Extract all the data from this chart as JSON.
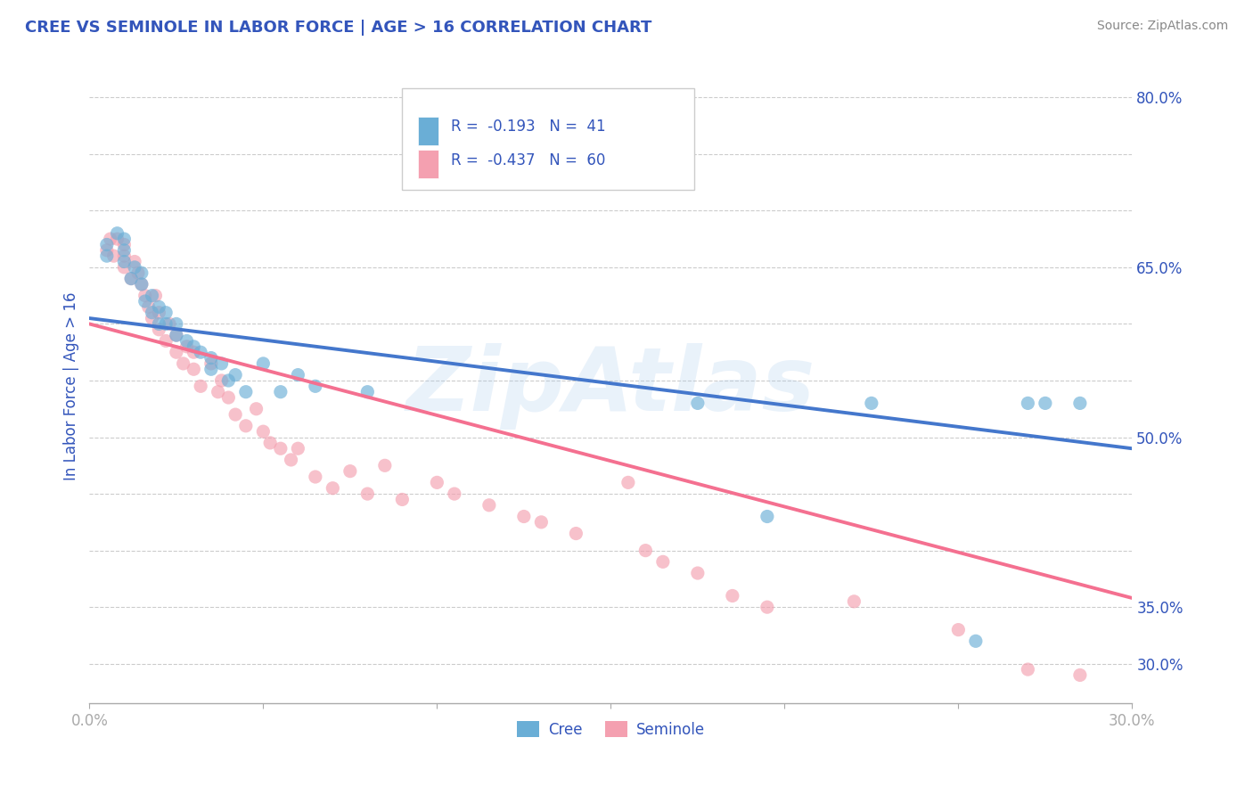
{
  "title": "CREE VS SEMINOLE IN LABOR FORCE | AGE > 16 CORRELATION CHART",
  "source_text": "Source: ZipAtlas.com",
  "ylabel": "In Labor Force | Age > 16",
  "xlim": [
    0.0,
    0.3
  ],
  "ylim": [
    0.265,
    0.825
  ],
  "cree_color": "#6aaed6",
  "seminole_color": "#f4a0b0",
  "cree_line_color": "#4477cc",
  "seminole_line_color": "#f47090",
  "legend_text_color": "#3355bb",
  "title_color": "#3355bb",
  "background_color": "#ffffff",
  "watermark": "ZipAtlas",
  "cree_R": -0.193,
  "cree_N": 41,
  "seminole_R": -0.437,
  "seminole_N": 60,
  "cree_line_x0": 0.0,
  "cree_line_y0": 0.605,
  "cree_line_x1": 0.3,
  "cree_line_y1": 0.49,
  "seminole_line_x0": 0.0,
  "seminole_line_y0": 0.6,
  "seminole_line_x1": 0.3,
  "seminole_line_y1": 0.358,
  "cree_x": [
    0.005,
    0.005,
    0.008,
    0.01,
    0.01,
    0.01,
    0.012,
    0.013,
    0.015,
    0.015,
    0.016,
    0.018,
    0.018,
    0.02,
    0.02,
    0.022,
    0.022,
    0.025,
    0.025,
    0.028,
    0.03,
    0.032,
    0.035,
    0.035,
    0.038,
    0.04,
    0.042,
    0.045,
    0.05,
    0.055,
    0.06,
    0.065,
    0.08,
    0.155,
    0.175,
    0.195,
    0.225,
    0.255,
    0.27,
    0.275,
    0.285
  ],
  "cree_y": [
    0.66,
    0.67,
    0.68,
    0.655,
    0.665,
    0.675,
    0.64,
    0.65,
    0.635,
    0.645,
    0.62,
    0.61,
    0.625,
    0.6,
    0.615,
    0.6,
    0.61,
    0.59,
    0.6,
    0.585,
    0.58,
    0.575,
    0.57,
    0.56,
    0.565,
    0.55,
    0.555,
    0.54,
    0.565,
    0.54,
    0.555,
    0.545,
    0.54,
    0.74,
    0.53,
    0.43,
    0.53,
    0.32,
    0.53,
    0.53,
    0.53
  ],
  "seminole_x": [
    0.005,
    0.006,
    0.007,
    0.008,
    0.01,
    0.01,
    0.01,
    0.012,
    0.013,
    0.014,
    0.015,
    0.016,
    0.017,
    0.018,
    0.019,
    0.02,
    0.02,
    0.022,
    0.023,
    0.025,
    0.025,
    0.027,
    0.028,
    0.03,
    0.03,
    0.032,
    0.035,
    0.037,
    0.038,
    0.04,
    0.042,
    0.045,
    0.048,
    0.05,
    0.052,
    0.055,
    0.058,
    0.06,
    0.065,
    0.07,
    0.075,
    0.08,
    0.085,
    0.09,
    0.1,
    0.105,
    0.115,
    0.125,
    0.13,
    0.14,
    0.155,
    0.16,
    0.165,
    0.175,
    0.185,
    0.195,
    0.22,
    0.25,
    0.27,
    0.285
  ],
  "seminole_y": [
    0.665,
    0.675,
    0.66,
    0.675,
    0.65,
    0.66,
    0.67,
    0.64,
    0.655,
    0.645,
    0.635,
    0.625,
    0.615,
    0.605,
    0.625,
    0.595,
    0.61,
    0.585,
    0.6,
    0.575,
    0.59,
    0.565,
    0.58,
    0.56,
    0.575,
    0.545,
    0.565,
    0.54,
    0.55,
    0.535,
    0.52,
    0.51,
    0.525,
    0.505,
    0.495,
    0.49,
    0.48,
    0.49,
    0.465,
    0.455,
    0.47,
    0.45,
    0.475,
    0.445,
    0.46,
    0.45,
    0.44,
    0.43,
    0.425,
    0.415,
    0.46,
    0.4,
    0.39,
    0.38,
    0.36,
    0.35,
    0.355,
    0.33,
    0.295,
    0.29
  ],
  "grid_color": "#cccccc",
  "tick_color": "#3355bb",
  "axis_color": "#aaaaaa",
  "dot_size": 120,
  "dot_alpha": 0.65,
  "line_width": 2.8
}
